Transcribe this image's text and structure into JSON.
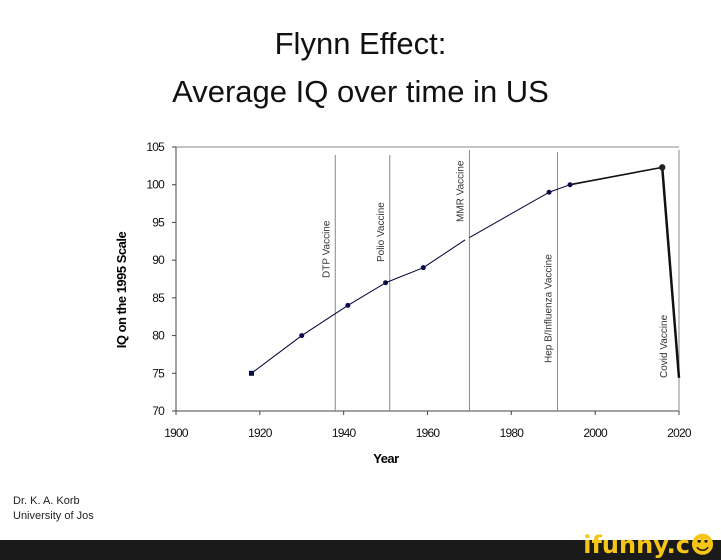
{
  "chart_data": {
    "type": "line",
    "title": [
      "Flynn Effect:",
      "Average IQ over time in US"
    ],
    "xlabel": "Year",
    "ylabel": "IQ on the 1995 Scale",
    "xlim": [
      1900,
      2020
    ],
    "ylim": [
      70,
      105
    ],
    "xticks": [
      1900,
      1920,
      1940,
      1960,
      1980,
      2000,
      2020
    ],
    "yticks": [
      70,
      75,
      80,
      85,
      90,
      95,
      100,
      105
    ],
    "grid": false,
    "series": [
      {
        "x": [
          1918,
          1930,
          1941,
          1950,
          1959,
          1969,
          1970,
          1989,
          1994,
          2016,
          2020
        ],
        "y": [
          75,
          80,
          84,
          87,
          89,
          92.7,
          93,
          99,
          100,
          102.3,
          74.4
        ],
        "markers": [
          true,
          true,
          true,
          true,
          true,
          false,
          false,
          true,
          true,
          true,
          false
        ]
      }
    ],
    "annotations": [
      {
        "x": 1938,
        "label": "DTP Vaccine"
      },
      {
        "x": 1951,
        "label": "Polio Vaccine"
      },
      {
        "x": 1970,
        "label": "MMR Vaccine"
      },
      {
        "x": 1991,
        "label": "Hep B/Influenza Vaccine"
      },
      {
        "x": 2020,
        "label": "Covid Vaccine"
      }
    ],
    "colors": {
      "line": "#000033",
      "marker": "#0b0b4a",
      "vline": "#888888"
    }
  },
  "credit": {
    "line1": "Dr. K. A. Korb",
    "line2": "University of Jos"
  },
  "watermark": "ifunny.co"
}
